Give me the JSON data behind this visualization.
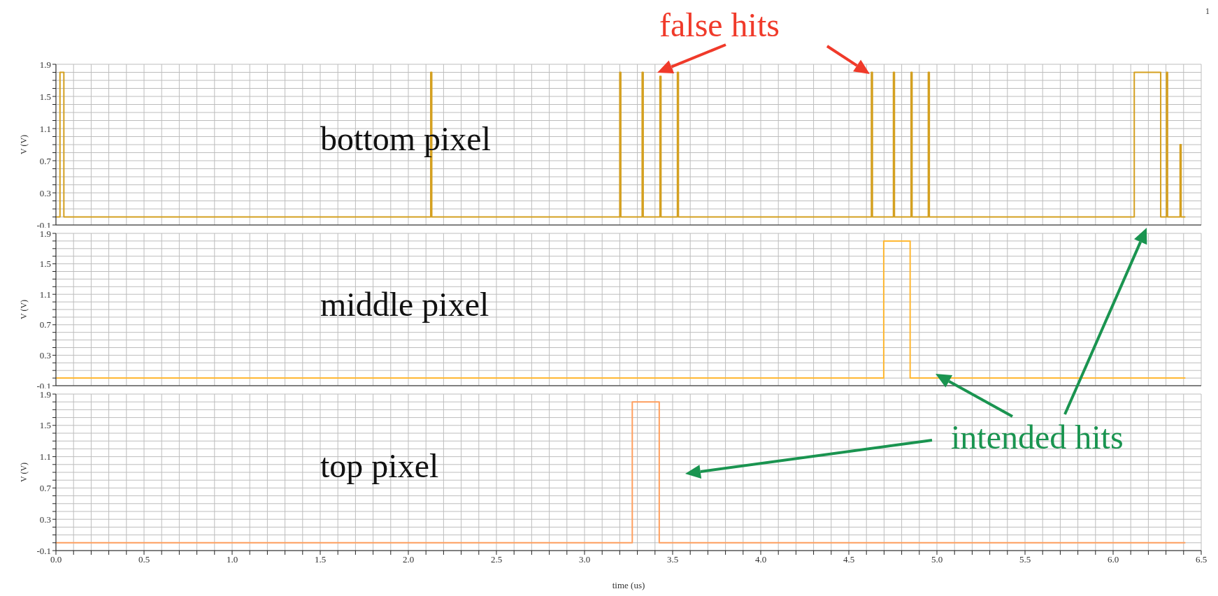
{
  "chart_data": [
    {
      "type": "step",
      "ylabel": "V (V)",
      "xlim": [
        0,
        6.5
      ],
      "xticks": [
        {
          "value": 0,
          "label": null
        },
        {
          "value": 0.1,
          "label": null
        },
        {
          "value": 0.2,
          "label": null
        },
        {
          "value": 0.3,
          "label": null
        },
        {
          "value": 0.4,
          "label": null
        },
        {
          "value": 0.5,
          "label": null
        },
        {
          "value": 0.6,
          "label": null
        },
        {
          "value": 0.7,
          "label": null
        },
        {
          "value": 0.8,
          "label": null
        },
        {
          "value": 0.9,
          "label": null
        },
        {
          "value": 1,
          "label": null
        },
        {
          "value": 1.1,
          "label": null
        },
        {
          "value": 1.2,
          "label": null
        },
        {
          "value": 1.3,
          "label": null
        },
        {
          "value": 1.4,
          "label": null
        },
        {
          "value": 1.5,
          "label": null
        },
        {
          "value": 1.6,
          "label": null
        },
        {
          "value": 1.7,
          "label": null
        },
        {
          "value": 1.8,
          "label": null
        },
        {
          "value": 1.9,
          "label": null
        },
        {
          "value": 2,
          "label": null
        },
        {
          "value": 2.1,
          "label": null
        },
        {
          "value": 2.2,
          "label": null
        },
        {
          "value": 2.3,
          "label": null
        },
        {
          "value": 2.4,
          "label": null
        },
        {
          "value": 2.5,
          "label": null
        },
        {
          "value": 2.6,
          "label": null
        },
        {
          "value": 2.7,
          "label": null
        },
        {
          "value": 2.8,
          "label": null
        },
        {
          "value": 2.9,
          "label": null
        },
        {
          "value": 3,
          "label": null
        },
        {
          "value": 3.1,
          "label": null
        },
        {
          "value": 3.2,
          "label": null
        },
        {
          "value": 3.3,
          "label": null
        },
        {
          "value": 3.4,
          "label": null
        },
        {
          "value": 3.5,
          "label": null
        },
        {
          "value": 3.6,
          "label": null
        },
        {
          "value": 3.7,
          "label": null
        },
        {
          "value": 3.8,
          "label": null
        },
        {
          "value": 3.9,
          "label": null
        },
        {
          "value": 4,
          "label": null
        },
        {
          "value": 4.1,
          "label": null
        },
        {
          "value": 4.2,
          "label": null
        },
        {
          "value": 4.3,
          "label": null
        },
        {
          "value": 4.4,
          "label": null
        },
        {
          "value": 4.5,
          "label": null
        },
        {
          "value": 4.6,
          "label": null
        },
        {
          "value": 4.7,
          "label": null
        },
        {
          "value": 4.8,
          "label": null
        },
        {
          "value": 4.9,
          "label": null
        },
        {
          "value": 5,
          "label": null
        },
        {
          "value": 5.1,
          "label": null
        },
        {
          "value": 5.2,
          "label": null
        },
        {
          "value": 5.3,
          "label": null
        },
        {
          "value": 5.4,
          "label": null
        },
        {
          "value": 5.5,
          "label": null
        },
        {
          "value": 5.6,
          "label": null
        },
        {
          "value": 5.7,
          "label": null
        },
        {
          "value": 5.8,
          "label": null
        },
        {
          "value": 5.9,
          "label": null
        },
        {
          "value": 6,
          "label": null
        },
        {
          "value": 6.1,
          "label": null
        },
        {
          "value": 6.2,
          "label": null
        },
        {
          "value": 6.3,
          "label": null
        },
        {
          "value": 6.4,
          "label": null
        },
        {
          "value": 6.5,
          "label": null
        }
      ],
      "ylim": [
        -0.1,
        1.9
      ],
      "yticks": [
        -0.1,
        {
          "value": 0,
          "label": null
        },
        {
          "value": 0.1,
          "label": null
        },
        {
          "value": 0.2,
          "label": null
        },
        0.3,
        {
          "value": 0.4,
          "label": null
        },
        {
          "value": 0.5,
          "label": null
        },
        {
          "value": 0.6,
          "label": null
        },
        0.7,
        {
          "value": 0.8,
          "label": null
        },
        {
          "value": 0.9,
          "label": null
        },
        {
          "value": 1,
          "label": null
        },
        1.1,
        {
          "value": 1.2,
          "label": null
        },
        {
          "value": 1.3,
          "label": null
        },
        {
          "value": 1.4,
          "label": null
        },
        1.5,
        {
          "value": 1.6,
          "label": null
        },
        {
          "value": 1.7,
          "label": null
        },
        {
          "value": 1.8,
          "label": null
        },
        1.9
      ],
      "grid": true,
      "tick_labels": "y",
      "marker": "none",
      "line_style": "solid",
      "x": [
        0,
        0.023,
        0.045,
        2.127,
        2.133,
        3.2,
        3.206,
        3.327,
        3.333,
        3.428,
        3.434,
        3.527,
        3.533,
        4.628,
        4.634,
        4.753,
        4.759,
        4.853,
        4.859,
        4.951,
        4.957,
        6.12,
        6.27,
        6.303,
        6.309,
        6.38,
        6.386,
        6.41
      ],
      "series": [
        {
          "color": "#d4a020",
          "values": [
            0,
            1.8,
            0,
            1.8,
            0,
            1.8,
            0,
            1.8,
            0,
            1.75,
            0,
            1.8,
            0,
            1.8,
            0,
            1.8,
            0,
            1.8,
            0,
            1.8,
            0,
            1.8,
            0,
            1.8,
            0,
            0.9,
            0,
            0
          ]
        }
      ],
      "annotations": [
        "bottom pixel",
        "false hits",
        "1"
      ]
    },
    {
      "type": "step",
      "ylabel": "V (V)",
      "xlim": [
        0,
        6.5
      ],
      "xticks": [
        {
          "value": 0,
          "label": null
        },
        {
          "value": 0.1,
          "label": null
        },
        {
          "value": 0.2,
          "label": null
        },
        {
          "value": 0.3,
          "label": null
        },
        {
          "value": 0.4,
          "label": null
        },
        {
          "value": 0.5,
          "label": null
        },
        {
          "value": 0.6,
          "label": null
        },
        {
          "value": 0.7,
          "label": null
        },
        {
          "value": 0.8,
          "label": null
        },
        {
          "value": 0.9,
          "label": null
        },
        {
          "value": 1,
          "label": null
        },
        {
          "value": 1.1,
          "label": null
        },
        {
          "value": 1.2,
          "label": null
        },
        {
          "value": 1.3,
          "label": null
        },
        {
          "value": 1.4,
          "label": null
        },
        {
          "value": 1.5,
          "label": null
        },
        {
          "value": 1.6,
          "label": null
        },
        {
          "value": 1.7,
          "label": null
        },
        {
          "value": 1.8,
          "label": null
        },
        {
          "value": 1.9,
          "label": null
        },
        {
          "value": 2,
          "label": null
        },
        {
          "value": 2.1,
          "label": null
        },
        {
          "value": 2.2,
          "label": null
        },
        {
          "value": 2.3,
          "label": null
        },
        {
          "value": 2.4,
          "label": null
        },
        {
          "value": 2.5,
          "label": null
        },
        {
          "value": 2.6,
          "label": null
        },
        {
          "value": 2.7,
          "label": null
        },
        {
          "value": 2.8,
          "label": null
        },
        {
          "value": 2.9,
          "label": null
        },
        {
          "value": 3,
          "label": null
        },
        {
          "value": 3.1,
          "label": null
        },
        {
          "value": 3.2,
          "label": null
        },
        {
          "value": 3.3,
          "label": null
        },
        {
          "value": 3.4,
          "label": null
        },
        {
          "value": 3.5,
          "label": null
        },
        {
          "value": 3.6,
          "label": null
        },
        {
          "value": 3.7,
          "label": null
        },
        {
          "value": 3.8,
          "label": null
        },
        {
          "value": 3.9,
          "label": null
        },
        {
          "value": 4,
          "label": null
        },
        {
          "value": 4.1,
          "label": null
        },
        {
          "value": 4.2,
          "label": null
        },
        {
          "value": 4.3,
          "label": null
        },
        {
          "value": 4.4,
          "label": null
        },
        {
          "value": 4.5,
          "label": null
        },
        {
          "value": 4.6,
          "label": null
        },
        {
          "value": 4.7,
          "label": null
        },
        {
          "value": 4.8,
          "label": null
        },
        {
          "value": 4.9,
          "label": null
        },
        {
          "value": 5,
          "label": null
        },
        {
          "value": 5.1,
          "label": null
        },
        {
          "value": 5.2,
          "label": null
        },
        {
          "value": 5.3,
          "label": null
        },
        {
          "value": 5.4,
          "label": null
        },
        {
          "value": 5.5,
          "label": null
        },
        {
          "value": 5.6,
          "label": null
        },
        {
          "value": 5.7,
          "label": null
        },
        {
          "value": 5.8,
          "label": null
        },
        {
          "value": 5.9,
          "label": null
        },
        {
          "value": 6,
          "label": null
        },
        {
          "value": 6.1,
          "label": null
        },
        {
          "value": 6.2,
          "label": null
        },
        {
          "value": 6.3,
          "label": null
        },
        {
          "value": 6.4,
          "label": null
        },
        {
          "value": 6.5,
          "label": null
        }
      ],
      "ylim": [
        -0.1,
        1.9
      ],
      "yticks": [
        -0.1,
        {
          "value": 0,
          "label": null
        },
        {
          "value": 0.1,
          "label": null
        },
        {
          "value": 0.2,
          "label": null
        },
        0.3,
        {
          "value": 0.4,
          "label": null
        },
        {
          "value": 0.5,
          "label": null
        },
        {
          "value": 0.6,
          "label": null
        },
        0.7,
        {
          "value": 0.8,
          "label": null
        },
        {
          "value": 0.9,
          "label": null
        },
        {
          "value": 1,
          "label": null
        },
        1.1,
        {
          "value": 1.2,
          "label": null
        },
        {
          "value": 1.3,
          "label": null
        },
        {
          "value": 1.4,
          "label": null
        },
        1.5,
        {
          "value": 1.6,
          "label": null
        },
        {
          "value": 1.7,
          "label": null
        },
        {
          "value": 1.8,
          "label": null
        },
        1.9
      ],
      "grid": true,
      "tick_labels": "y",
      "marker": "none",
      "line_style": "solid",
      "x": [
        0,
        4.698,
        4.848,
        6.41
      ],
      "series": [
        {
          "color": "#ffb833",
          "values": [
            0,
            1.8,
            0,
            0
          ]
        }
      ],
      "annotations": [
        "middle pixel"
      ]
    },
    {
      "type": "step",
      "ylabel": "V (V)",
      "xlabel": "time (us)",
      "xlim": [
        0,
        6.5
      ],
      "xticks": [
        {
          "value": 0,
          "label": "0.0"
        },
        {
          "value": 0.1,
          "label": null
        },
        {
          "value": 0.2,
          "label": null
        },
        {
          "value": 0.3,
          "label": null
        },
        {
          "value": 0.4,
          "label": null
        },
        {
          "value": 0.5,
          "label": "0.5"
        },
        {
          "value": 0.6,
          "label": null
        },
        {
          "value": 0.7,
          "label": null
        },
        {
          "value": 0.8,
          "label": null
        },
        {
          "value": 0.9,
          "label": null
        },
        {
          "value": 1,
          "label": "1.0"
        },
        {
          "value": 1.1,
          "label": null
        },
        {
          "value": 1.2,
          "label": null
        },
        {
          "value": 1.3,
          "label": null
        },
        {
          "value": 1.4,
          "label": null
        },
        {
          "value": 1.5,
          "label": "1.5"
        },
        {
          "value": 1.6,
          "label": null
        },
        {
          "value": 1.7,
          "label": null
        },
        {
          "value": 1.8,
          "label": null
        },
        {
          "value": 1.9,
          "label": null
        },
        {
          "value": 2,
          "label": "2.0"
        },
        {
          "value": 2.1,
          "label": null
        },
        {
          "value": 2.2,
          "label": null
        },
        {
          "value": 2.3,
          "label": null
        },
        {
          "value": 2.4,
          "label": null
        },
        {
          "value": 2.5,
          "label": "2.5"
        },
        {
          "value": 2.6,
          "label": null
        },
        {
          "value": 2.7,
          "label": null
        },
        {
          "value": 2.8,
          "label": null
        },
        {
          "value": 2.9,
          "label": null
        },
        {
          "value": 3,
          "label": "3.0"
        },
        {
          "value": 3.1,
          "label": null
        },
        {
          "value": 3.2,
          "label": null
        },
        {
          "value": 3.3,
          "label": null
        },
        {
          "value": 3.4,
          "label": null
        },
        {
          "value": 3.5,
          "label": "3.5"
        },
        {
          "value": 3.6,
          "label": null
        },
        {
          "value": 3.7,
          "label": null
        },
        {
          "value": 3.8,
          "label": null
        },
        {
          "value": 3.9,
          "label": null
        },
        {
          "value": 4,
          "label": "4.0"
        },
        {
          "value": 4.1,
          "label": null
        },
        {
          "value": 4.2,
          "label": null
        },
        {
          "value": 4.3,
          "label": null
        },
        {
          "value": 4.4,
          "label": null
        },
        {
          "value": 4.5,
          "label": "4.5"
        },
        {
          "value": 4.6,
          "label": null
        },
        {
          "value": 4.7,
          "label": null
        },
        {
          "value": 4.8,
          "label": null
        },
        {
          "value": 4.9,
          "label": null
        },
        {
          "value": 5,
          "label": "5.0"
        },
        {
          "value": 5.1,
          "label": null
        },
        {
          "value": 5.2,
          "label": null
        },
        {
          "value": 5.3,
          "label": null
        },
        {
          "value": 5.4,
          "label": null
        },
        {
          "value": 5.5,
          "label": "5.5"
        },
        {
          "value": 5.6,
          "label": null
        },
        {
          "value": 5.7,
          "label": null
        },
        {
          "value": 5.8,
          "label": null
        },
        {
          "value": 5.9,
          "label": null
        },
        {
          "value": 6,
          "label": "6.0"
        },
        {
          "value": 6.1,
          "label": null
        },
        {
          "value": 6.2,
          "label": null
        },
        {
          "value": 6.3,
          "label": null
        },
        {
          "value": 6.4,
          "label": null
        },
        {
          "value": 6.5,
          "label": "6.5"
        }
      ],
      "ylim": [
        -0.1,
        1.9
      ],
      "yticks": [
        -0.1,
        {
          "value": 0,
          "label": null
        },
        {
          "value": 0.1,
          "label": null
        },
        {
          "value": 0.2,
          "label": null
        },
        0.3,
        {
          "value": 0.4,
          "label": null
        },
        {
          "value": 0.5,
          "label": null
        },
        {
          "value": 0.6,
          "label": null
        },
        0.7,
        {
          "value": 0.8,
          "label": null
        },
        {
          "value": 0.9,
          "label": null
        },
        {
          "value": 1,
          "label": null
        },
        1.1,
        {
          "value": 1.2,
          "label": null
        },
        {
          "value": 1.3,
          "label": null
        },
        {
          "value": 1.4,
          "label": null
        },
        1.5,
        {
          "value": 1.6,
          "label": null
        },
        {
          "value": 1.7,
          "label": null
        },
        {
          "value": 1.8,
          "label": null
        },
        1.9
      ],
      "grid": true,
      "marker": "none",
      "line_style": "solid",
      "x": [
        0,
        3.271,
        3.424,
        6.41
      ],
      "series": [
        {
          "color": "#ffa060",
          "values": [
            0,
            1.8,
            0,
            0
          ]
        }
      ],
      "annotations": [
        "top pixel",
        "intended hits"
      ]
    }
  ]
}
